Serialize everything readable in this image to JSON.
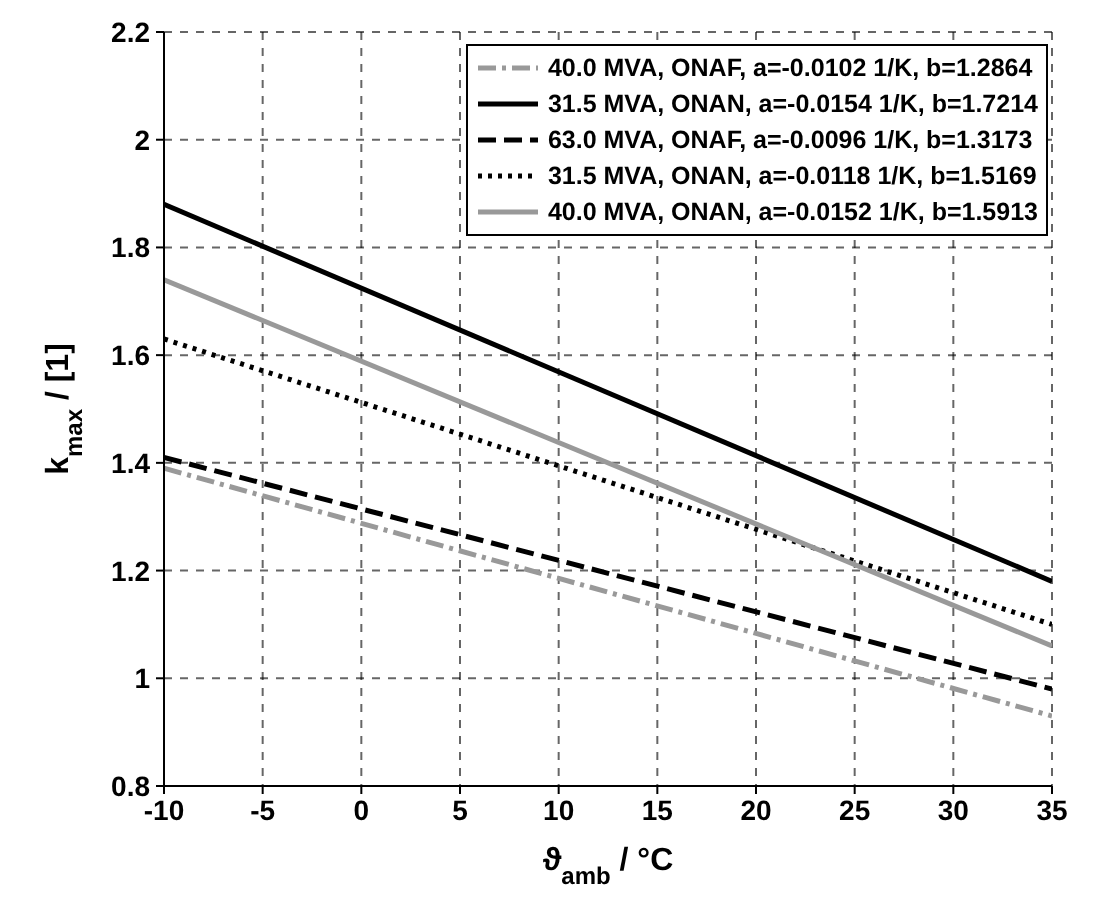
{
  "chart_data": {
    "type": "line",
    "xlabel": "ϑ$_{amb}$ / °C",
    "ylabel": "k$_{max}$ / [1]",
    "x": [
      -10,
      35
    ],
    "xlim": [
      -10,
      35
    ],
    "xticks": [
      -10,
      -5,
      0,
      5,
      10,
      15,
      20,
      25,
      30,
      35
    ],
    "ylim": [
      0.8,
      2.2
    ],
    "yticks": [
      0.8,
      1,
      1.2,
      1.4,
      1.6,
      1.8,
      2,
      2.2
    ],
    "grid": true,
    "legend": "top right",
    "series": [
      {
        "name": "40.0 MVA, ONAF, a=-0.0102 1/K, b=1.2864",
        "color": "#999999",
        "line_style": "dashdot",
        "values": [
          1.39,
          0.93
        ]
      },
      {
        "name": "31.5 MVA, ONAN, a=-0.0154 1/K, b=1.7214",
        "color": "#000000",
        "line_style": "solid",
        "values": [
          1.88,
          1.18
        ]
      },
      {
        "name": "63.0 MVA, ONAF, a=-0.0096 1/K, b=1.3173",
        "color": "#000000",
        "line_style": "dashed",
        "values": [
          1.41,
          0.98
        ]
      },
      {
        "name": "31.5 MVA, ONAN, a=-0.0118 1/K, b=1.5169",
        "color": "#000000",
        "line_style": "dotted",
        "values": [
          1.63,
          1.1
        ]
      },
      {
        "name": "40.0 MVA, ONAN, a=-0.0152 1/K, b=1.5913",
        "color": "#999999",
        "line_style": "solid",
        "values": [
          1.74,
          1.06
        ]
      }
    ]
  }
}
